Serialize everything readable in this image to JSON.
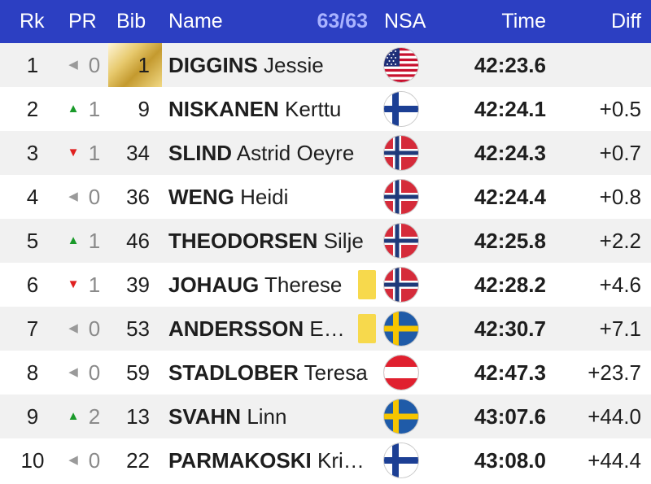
{
  "header": {
    "rk": "Rk",
    "pr": "PR",
    "bib": "Bib",
    "name": "Name",
    "count": "63/63",
    "nsa": "NSA",
    "time": "Time",
    "diff": "Diff"
  },
  "colors": {
    "header_bg": "#2c3fc2",
    "count_text": "#a9b3ff",
    "up_arrow": "#1a9a2a",
    "down_arrow": "#e0201f",
    "neutral_arrow": "#9a9a9a",
    "yellow_card": "#f7d94c"
  },
  "rows": [
    {
      "rank": "1",
      "trend": "same",
      "pr": "0",
      "bib": "1",
      "last": "DIGGINS",
      "first": "Jessie",
      "nsa": "usa-flag-icon",
      "yellow_bib": false,
      "time": "42:23.6",
      "diff": ""
    },
    {
      "rank": "2",
      "trend": "up",
      "pr": "1",
      "bib": "9",
      "last": "NISKANEN",
      "first": "Kerttu",
      "nsa": "finland-flag-icon",
      "yellow_bib": false,
      "time": "42:24.1",
      "diff": "+0.5"
    },
    {
      "rank": "3",
      "trend": "down",
      "pr": "1",
      "bib": "34",
      "last": "SLIND",
      "first": "Astrid Oeyre",
      "nsa": "norway-flag-icon",
      "yellow_bib": false,
      "time": "42:24.3",
      "diff": "+0.7"
    },
    {
      "rank": "4",
      "trend": "same",
      "pr": "0",
      "bib": "36",
      "last": "WENG",
      "first": "Heidi",
      "nsa": "norway-flag-icon",
      "yellow_bib": false,
      "time": "42:24.4",
      "diff": "+0.8"
    },
    {
      "rank": "5",
      "trend": "up",
      "pr": "1",
      "bib": "46",
      "last": "THEODORSEN",
      "first": "Silje",
      "nsa": "norway-flag-icon",
      "yellow_bib": false,
      "time": "42:25.8",
      "diff": "+2.2"
    },
    {
      "rank": "6",
      "trend": "down",
      "pr": "1",
      "bib": "39",
      "last": "JOHAUG",
      "first": "Therese",
      "nsa": "norway-flag-icon",
      "yellow_bib": true,
      "time": "42:28.2",
      "diff": "+4.6"
    },
    {
      "rank": "7",
      "trend": "same",
      "pr": "0",
      "bib": "53",
      "last": "ANDERSSON",
      "first": "E…",
      "nsa": "sweden-flag-icon",
      "yellow_bib": true,
      "time": "42:30.7",
      "diff": "+7.1"
    },
    {
      "rank": "8",
      "trend": "same",
      "pr": "0",
      "bib": "59",
      "last": "STADLOBER",
      "first": "Teresa",
      "nsa": "austria-flag-icon",
      "yellow_bib": false,
      "time": "42:47.3",
      "diff": "+23.7"
    },
    {
      "rank": "9",
      "trend": "up",
      "pr": "2",
      "bib": "13",
      "last": "SVAHN",
      "first": "Linn",
      "nsa": "sweden-flag-icon",
      "yellow_bib": false,
      "time": "43:07.6",
      "diff": "+44.0"
    },
    {
      "rank": "10",
      "trend": "same",
      "pr": "0",
      "bib": "22",
      "last": "PARMAKOSKI",
      "first": "Kri…",
      "nsa": "finland-flag-icon",
      "yellow_bib": false,
      "time": "43:08.0",
      "diff": "+44.4"
    }
  ]
}
